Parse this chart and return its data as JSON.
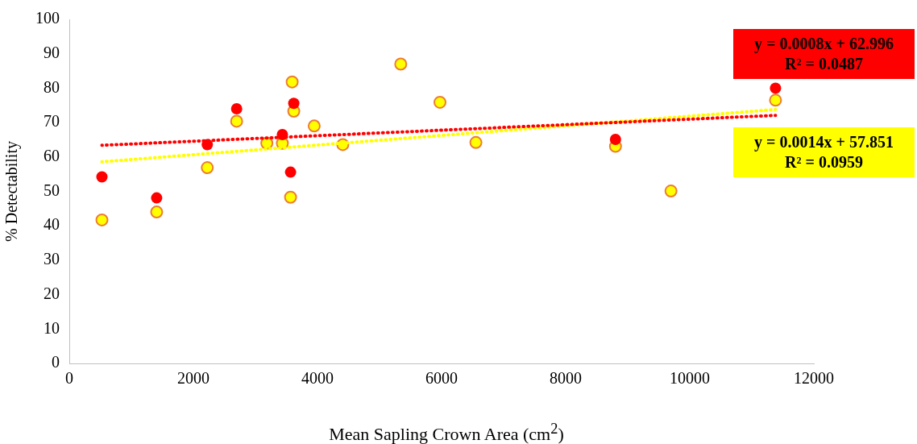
{
  "chart_data": {
    "type": "scatter",
    "xlabel": "Mean Sapling Crown Area (cm$^{2}$)",
    "ylabel": "% Detectability",
    "xlim": [
      0,
      12000
    ],
    "xticks": [
      0,
      2000,
      4000,
      6000,
      8000,
      10000,
      12000
    ],
    "ylim": [
      0,
      100
    ],
    "yticks": [
      0,
      10,
      20,
      30,
      40,
      50,
      60,
      70,
      80,
      90,
      100
    ],
    "grid": false,
    "legend": false,
    "marker": "circle",
    "series": [
      {
        "color": "#ff0000",
        "x": [
          526,
          1408,
          2224,
          2697,
          3434,
          3566,
          3618,
          8803,
          11382
        ],
        "values": [
          54.2,
          48.1,
          63.6,
          74.0,
          66.5,
          55.6,
          75.6,
          65.1,
          80.0
        ]
      },
      {
        "color": "#ffff00",
        "x": [
          526,
          1408,
          2224,
          2697,
          3184,
          3434,
          3592,
          3618,
          3566,
          3947,
          4408,
          5342,
          5974,
          6553,
          8803,
          9697,
          11382
        ],
        "values": [
          41.7,
          44.0,
          56.9,
          70.4,
          64.0,
          64.0,
          81.8,
          73.3,
          48.3,
          69.0,
          63.6,
          87.0,
          75.9,
          64.2,
          63.1,
          50.1,
          76.5
        ]
      },
      {
        "type": "line",
        "color": "#ff0000",
        "marker": "none",
        "line_style": "dotted",
        "x": [
          526,
          11382
        ],
        "values": [
          63.4,
          72.1
        ]
      },
      {
        "type": "line",
        "color": "#ffff00",
        "marker": "none",
        "line_style": "dotted",
        "x": [
          526,
          11382
        ],
        "values": [
          58.6,
          73.8
        ]
      }
    ],
    "annotations": [
      "y = 0.0008x + 62.996\nR² = 0.0487",
      "y = 0.0014x + 57.851\nR² = 0.0959"
    ]
  }
}
